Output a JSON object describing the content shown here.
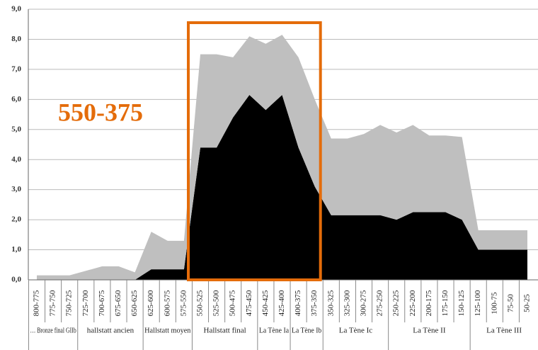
{
  "chart_data": {
    "type": "stacked-area",
    "annotation": "550-375",
    "categories": [
      "800-775",
      "775-750",
      "750-725",
      "725-700",
      "700-675",
      "675-650",
      "650-625",
      "625-600",
      "600-575",
      "575-550",
      "550-525",
      "525-500",
      "500-475",
      "475-450",
      "450-425",
      "425-400",
      "400-375",
      "375-350",
      "350-325",
      "325-300",
      "300-275",
      "275-250",
      "250-225",
      "225-200",
      "200-175",
      "175-150",
      "150-125",
      "125-100",
      "100-75",
      "75-50",
      "50-25"
    ],
    "groups": [
      "… Bronze final GIIb",
      "hallstatt ancien",
      "Hallstatt moyen",
      "Hallstatt final",
      "La Tène Ia",
      "La Tène Ib",
      "La Tène Ic",
      "La Tène II",
      "La Tène III"
    ],
    "series": [
      {
        "color": "#000000",
        "values": [
          0,
          0,
          0,
          0,
          0,
          0,
          0,
          0.35,
          0.35,
          0.35,
          4.4,
          4.4,
          5.4,
          6.15,
          5.65,
          6.15,
          4.4,
          3.1,
          2.15,
          2.15,
          2.15,
          2.15,
          2.0,
          2.25,
          2.25,
          2.25,
          2.0,
          1.0,
          1.0,
          1.0,
          1.0
        ]
      },
      {
        "color": "#bfbfbf",
        "values": [
          0.15,
          0.15,
          0.15,
          0.3,
          0.45,
          0.45,
          0.25,
          1.25,
          0.95,
          0.95,
          3.1,
          3.1,
          2.0,
          1.95,
          2.2,
          2.0,
          3.0,
          2.9,
          2.55,
          2.55,
          2.7,
          3.0,
          2.9,
          2.9,
          2.55,
          2.55,
          2.75,
          0.65,
          0.65,
          0.65,
          0.65
        ]
      }
    ],
    "ylim": [
      0,
      9
    ],
    "yticks": [
      {
        "value": 0,
        "label": "0,0"
      },
      {
        "value": 1,
        "label": "1,0"
      },
      {
        "value": 2,
        "label": "2,0"
      },
      {
        "value": 3,
        "label": "3,0"
      },
      {
        "value": 4,
        "label": "4,0"
      },
      {
        "value": 5,
        "label": "5,0"
      },
      {
        "value": 6,
        "label": "6,0"
      },
      {
        "value": 7,
        "label": "7,0"
      },
      {
        "value": 8,
        "label": "8,0"
      },
      {
        "value": 9,
        "label": "9,0"
      }
    ],
    "grid": true
  }
}
